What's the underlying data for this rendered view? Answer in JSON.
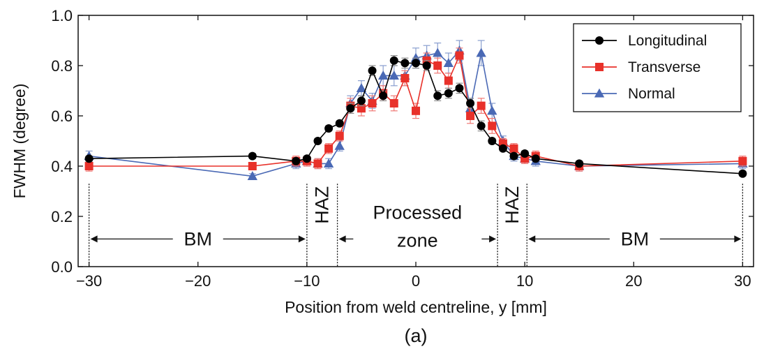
{
  "chart_data": {
    "type": "line",
    "xlabel": "Position from weld centreline, y [mm]",
    "ylabel": "FWHM (degree)",
    "panel_label": "(a)",
    "xlim": [
      -31,
      31
    ],
    "ylim": [
      0.0,
      1.0
    ],
    "xticks": [
      -30,
      -20,
      -10,
      0,
      10,
      20,
      30
    ],
    "xtick_labels": [
      "−30",
      "−20",
      "−10",
      "0",
      "10",
      "20",
      "30"
    ],
    "yticks": [
      0.0,
      0.2,
      0.4,
      0.6,
      0.8,
      1.0
    ],
    "ytick_labels": [
      "0.0",
      "0.2",
      "0.4",
      "0.6",
      "0.8",
      "1.0"
    ],
    "legend_position": "top-right",
    "error_bars": true,
    "series": [
      {
        "name": "Longitudinal",
        "color": "#000000",
        "marker": "circle",
        "x": [
          -30,
          -15,
          -11,
          -10,
          -9,
          -8,
          -7,
          -6,
          -5,
          -4,
          -3,
          -2,
          -1,
          0,
          1,
          2,
          3,
          4,
          5,
          6,
          7,
          8,
          9,
          10,
          11,
          15,
          30
        ],
        "y": [
          0.43,
          0.44,
          0.42,
          0.43,
          0.5,
          0.55,
          0.57,
          0.63,
          0.66,
          0.78,
          0.68,
          0.82,
          0.81,
          0.81,
          0.8,
          0.68,
          0.69,
          0.71,
          0.65,
          0.56,
          0.5,
          0.47,
          0.44,
          0.45,
          0.43,
          0.41,
          0.37
        ],
        "err": [
          0.01,
          0.01,
          0.01,
          0.01,
          0.01,
          0.01,
          0.01,
          0.02,
          0.02,
          0.02,
          0.02,
          0.02,
          0.02,
          0.02,
          0.02,
          0.02,
          0.02,
          0.02,
          0.02,
          0.02,
          0.01,
          0.01,
          0.01,
          0.01,
          0.01,
          0.01,
          0.01
        ]
      },
      {
        "name": "Transverse",
        "color": "#e8312a",
        "marker": "square",
        "x": [
          -30,
          -15,
          -11,
          -10,
          -9,
          -8,
          -7,
          -6,
          -5,
          -4,
          -3,
          -2,
          -1,
          0,
          1,
          2,
          3,
          4,
          5,
          6,
          7,
          8,
          9,
          10,
          11,
          15,
          30
        ],
        "y": [
          0.4,
          0.4,
          0.42,
          0.42,
          0.41,
          0.47,
          0.52,
          0.64,
          0.63,
          0.65,
          0.69,
          0.65,
          0.75,
          0.62,
          0.82,
          0.8,
          0.74,
          0.84,
          0.6,
          0.64,
          0.56,
          0.49,
          0.47,
          0.43,
          0.44,
          0.4,
          0.42
        ],
        "err": [
          0.02,
          0.01,
          0.02,
          0.02,
          0.02,
          0.02,
          0.02,
          0.03,
          0.03,
          0.03,
          0.03,
          0.03,
          0.03,
          0.03,
          0.03,
          0.03,
          0.03,
          0.03,
          0.03,
          0.03,
          0.03,
          0.02,
          0.02,
          0.02,
          0.02,
          0.02,
          0.02
        ]
      },
      {
        "name": "Normal",
        "color": "#4a69b5",
        "marker": "triangle",
        "x": [
          -30,
          -15,
          -11,
          -10,
          -9,
          -8,
          -7,
          -6,
          -5,
          -4,
          -3,
          -2,
          -1,
          0,
          1,
          2,
          3,
          4,
          5,
          6,
          7,
          8,
          9,
          10,
          11,
          15,
          30
        ],
        "y": [
          0.44,
          0.36,
          0.41,
          0.42,
          0.41,
          0.41,
          0.48,
          0.65,
          0.71,
          0.66,
          0.76,
          0.76,
          0.76,
          0.83,
          0.84,
          0.85,
          0.81,
          0.86,
          0.63,
          0.85,
          0.62,
          0.5,
          0.44,
          0.43,
          0.42,
          0.4,
          0.41
        ],
        "err": [
          0.02,
          0.01,
          0.02,
          0.02,
          0.02,
          0.02,
          0.02,
          0.03,
          0.03,
          0.03,
          0.04,
          0.04,
          0.04,
          0.04,
          0.04,
          0.04,
          0.04,
          0.04,
          0.04,
          0.05,
          0.03,
          0.02,
          0.02,
          0.02,
          0.02,
          0.02,
          0.02
        ]
      }
    ],
    "region_boundaries": [
      -30,
      -10,
      -7.2,
      7.5,
      10.2,
      30
    ],
    "annotations": [
      {
        "text": "BM",
        "span": [
          -30,
          -10
        ],
        "orientation": "horizontal",
        "lines": [
          "BM"
        ]
      },
      {
        "text": "HAZ",
        "span": [
          -10,
          -7.2
        ],
        "orientation": "vertical",
        "lines": [
          "HAZ"
        ]
      },
      {
        "text": "Processed zone",
        "span": [
          -7.2,
          7.5
        ],
        "orientation": "horizontal",
        "lines": [
          "Processed",
          "zone"
        ]
      },
      {
        "text": "HAZ",
        "span": [
          7.5,
          10.2
        ],
        "orientation": "vertical",
        "lines": [
          "HAZ"
        ]
      },
      {
        "text": "BM",
        "span": [
          10.2,
          30
        ],
        "orientation": "horizontal",
        "lines": [
          "BM"
        ]
      }
    ]
  }
}
